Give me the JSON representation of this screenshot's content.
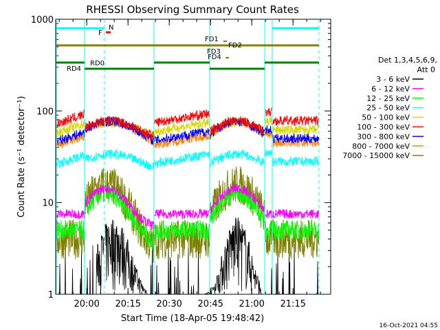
{
  "chart_data": {
    "type": "line",
    "title": "RHESSI Observing Summary Count Rates",
    "xlabel": "Start Time (18-Apr-05 19:48:42)",
    "ylabel": "Count Rate (s⁻¹ detector⁻¹)",
    "yscale": "log",
    "ylim": [
      1,
      1000
    ],
    "xlim_minutes_after_19_48_42": [
      0,
      100
    ],
    "x_ticks": [
      "20:00",
      "20:15",
      "20:30",
      "20:45",
      "21:00",
      "21:15"
    ],
    "y_ticks": [
      "1",
      "10",
      "100",
      "1000"
    ],
    "legend_header": [
      "Det 1,3,4,5,6,9,",
      "Att 0"
    ],
    "legend_position": "right",
    "timestamp": "16-Oct-2021 04:55",
    "series": [
      {
        "name": "3 - 6 keV",
        "color": "#000000",
        "typical": 1.5
      },
      {
        "name": "6 - 12 keV",
        "color": "#ff00ff",
        "typical": 7.5
      },
      {
        "name": "12 - 25 keV",
        "color": "#00ff00",
        "typical": 5
      },
      {
        "name": "25 - 50 keV",
        "color": "#00ffff",
        "typical": 28
      },
      {
        "name": "50 - 100 keV",
        "color": "#d7d700",
        "typical": 62
      },
      {
        "name": "100 - 300 keV",
        "color": "#ff0000",
        "typical": 78
      },
      {
        "name": "300 - 800 keV",
        "color": "#0000ff",
        "typical": 50
      },
      {
        "name": "800 - 7000 keV",
        "color": "#ff8000",
        "typical": 45
      },
      {
        "name": "7000 - 15000 keV",
        "color": "#808000",
        "typical": 4
      }
    ],
    "flag_bars": [
      {
        "label": "N",
        "color": "#00ffff"
      },
      {
        "label": "F",
        "color": "#ff0000"
      },
      {
        "label": "FD1",
        "color": "#808000"
      },
      {
        "label": "FD2",
        "color": "#808000"
      },
      {
        "label": "FD3",
        "color": "#808000"
      },
      {
        "label": "FD4",
        "color": "#808000"
      },
      {
        "label": "RD0",
        "color": "#008000"
      },
      {
        "label": "RD4",
        "color": "#008000"
      }
    ]
  }
}
